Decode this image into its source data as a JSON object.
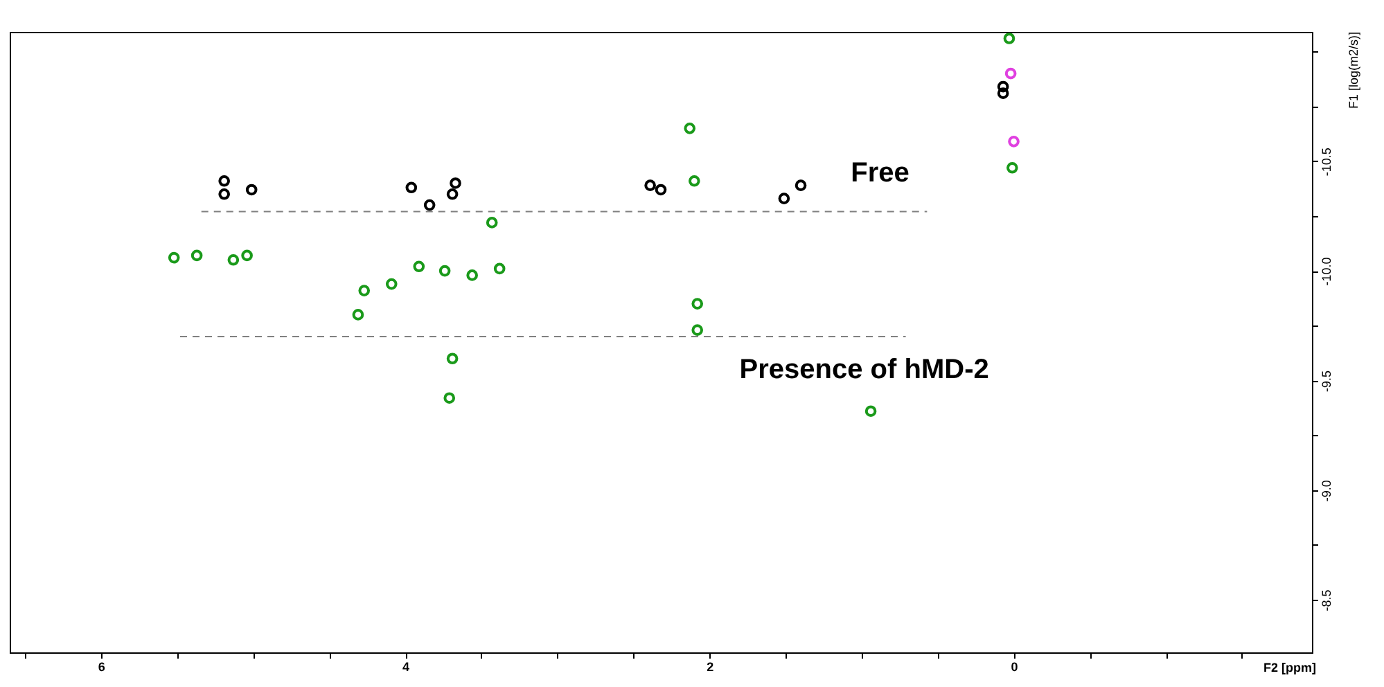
{
  "chart_data": {
    "type": "scatter",
    "xlabel": "F2 [ppm]",
    "ylabel": "F1 [log(m2/s)]",
    "xlim": [
      6.6,
      -1.96
    ],
    "ylim": [
      -8.26,
      -11.09
    ],
    "xticks": [
      {
        "value": 6.5,
        "label": null
      },
      6,
      {
        "value": 5.5,
        "label": null
      },
      {
        "value": 5,
        "label": null
      },
      {
        "value": 4.5,
        "label": null
      },
      4,
      {
        "value": 3.5,
        "label": null
      },
      {
        "value": 3,
        "label": null
      },
      {
        "value": 2.5,
        "label": null
      },
      2,
      {
        "value": 1.5,
        "label": null
      },
      {
        "value": 1,
        "label": null
      },
      {
        "value": 0.5,
        "label": null
      },
      0,
      {
        "value": -0.5,
        "label": null
      },
      {
        "value": -1,
        "label": null
      },
      {
        "value": -1.5,
        "label": null
      }
    ],
    "yticks": [
      {
        "value": -11.0,
        "label": null
      },
      {
        "value": -10.75,
        "label": null
      },
      {
        "value": -10.5,
        "label": "-10.5"
      },
      {
        "value": -10.25,
        "label": null
      },
      {
        "value": -10.0,
        "label": "-10.0"
      },
      {
        "value": -9.75,
        "label": null
      },
      {
        "value": -9.5,
        "label": "-9.5"
      },
      {
        "value": -9.25,
        "label": null
      },
      {
        "value": -9.0,
        "label": "-9.0"
      },
      {
        "value": -8.75,
        "label": null
      },
      {
        "value": -8.5,
        "label": "-8.5"
      }
    ],
    "grid": false,
    "marker": "circle",
    "series": [
      {
        "color": "#000000",
        "x": [
          5.19,
          5.19,
          5.01,
          3.96,
          3.84,
          3.69,
          3.67,
          2.39,
          2.32,
          1.51,
          1.4,
          0.07,
          0.07
        ],
        "values": [
          -10.41,
          -10.35,
          -10.37,
          -10.38,
          -10.3,
          -10.35,
          -10.4,
          -10.39,
          -10.37,
          -10.33,
          -10.39,
          -10.81,
          -10.84
        ]
      },
      {
        "color": "#1a9a1a",
        "x": [
          5.52,
          5.37,
          5.13,
          5.04,
          4.31,
          4.27,
          4.09,
          3.91,
          3.74,
          3.69,
          3.71,
          3.56,
          3.43,
          3.38,
          2.13,
          2.1,
          2.08,
          2.08,
          0.94,
          0.03,
          0.01
        ],
        "values": [
          -10.06,
          -10.07,
          -10.05,
          -10.07,
          -9.8,
          -9.91,
          -9.94,
          -10.02,
          -10.0,
          -9.6,
          -9.42,
          -9.98,
          -10.22,
          -10.01,
          -10.65,
          -10.41,
          -9.85,
          -9.73,
          -9.36,
          -11.06,
          -10.47
        ]
      },
      {
        "color": "#e040e0",
        "x": [
          0.02,
          0.0
        ],
        "values": [
          -10.9,
          -10.59
        ]
      },
      {
        "type": "line",
        "marker": "none",
        "line_style": "dashed",
        "color": "#808080",
        "x": [
          5.34,
          0.57
        ],
        "values": [
          -10.27,
          -10.27
        ]
      },
      {
        "type": "line",
        "marker": "none",
        "line_style": "dashed",
        "color": "#808080",
        "x": [
          5.48,
          0.71
        ],
        "values": [
          -9.7,
          -9.7
        ]
      }
    ],
    "annotations": [
      "Free",
      "Presence of hMD-2"
    ]
  }
}
